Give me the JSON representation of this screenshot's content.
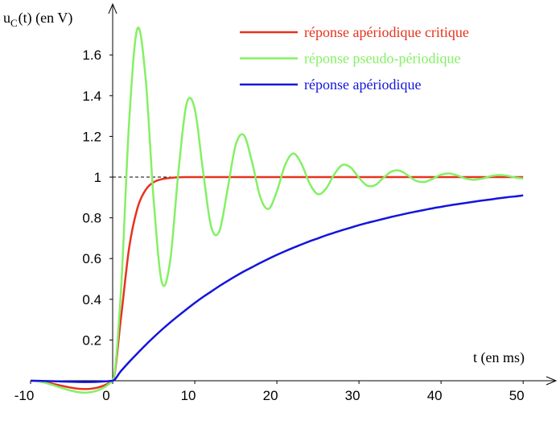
{
  "chart_data": {
    "type": "line",
    "y_label": [
      "u",
      "C",
      "(t) (en V)"
    ],
    "x_label": "t (en ms)",
    "xlim": [
      -10,
      54
    ],
    "ylim": [
      0,
      1.85
    ],
    "xticks": [
      -10,
      0,
      10,
      20,
      30,
      40,
      50
    ],
    "yticks": [
      0.2,
      0.4,
      0.6,
      0.8,
      1,
      1.2,
      1.4,
      1.6
    ],
    "dashed_line": {
      "y": 1,
      "x_end": 8
    },
    "x": [
      -10,
      0,
      1,
      2,
      3,
      4,
      5,
      6,
      7,
      8,
      9,
      10,
      11,
      12,
      13,
      14,
      15,
      16,
      17,
      18,
      19,
      20,
      21,
      22,
      23,
      24,
      25,
      26,
      27,
      28,
      29,
      30,
      31,
      32,
      33,
      34,
      35,
      36,
      37,
      38,
      39,
      40,
      41,
      42,
      43,
      44,
      45,
      46,
      47,
      48,
      49,
      50
    ],
    "series": [
      {
        "name": "réponse apériodique critique",
        "color": "#e8321e",
        "values": [
          0,
          0,
          0.305,
          0.651,
          0.845,
          0.936,
          0.975,
          0.99,
          0.996,
          0.999,
          1,
          1,
          1,
          1,
          1,
          1,
          1,
          1,
          1,
          1,
          1,
          1,
          1,
          1,
          1,
          1,
          1,
          1,
          1,
          1,
          1,
          1,
          1,
          1,
          1,
          1,
          1,
          1,
          1,
          1,
          1,
          1,
          1,
          1,
          1,
          1,
          1,
          1,
          1,
          1,
          1,
          1
        ]
      },
      {
        "name": "réponse pseudo-périodique",
        "color": "#84f064",
        "values": [
          0,
          0,
          0.435,
          1.269,
          1.728,
          1.492,
          0.884,
          0.482,
          0.588,
          1.022,
          1.36,
          1.335,
          1.032,
          0.756,
          0.735,
          0.941,
          1.16,
          1.205,
          1.07,
          0.899,
          0.844,
          0.93,
          1.059,
          1.116,
          1.065,
          0.968,
          0.916,
          0.944,
          1.014,
          1.06,
          1.047,
          0.997,
          0.958,
          0.961,
          0.997,
          1.028,
          1.031,
          1.007,
          0.981,
          0.976,
          0.992,
          1.012,
          1.018,
          1.008,
          0.993,
          0.987,
          0.993,
          1.004,
          1.01,
          1.007,
          0.998,
          0.993
        ]
      },
      {
        "name": "réponse apériodique",
        "color": "#1414dc",
        "values": [
          0,
          0,
          0.047,
          0.092,
          0.134,
          0.175,
          0.214,
          0.251,
          0.286,
          0.319,
          0.351,
          0.382,
          0.411,
          0.438,
          0.465,
          0.49,
          0.514,
          0.537,
          0.558,
          0.579,
          0.599,
          0.618,
          0.636,
          0.653,
          0.669,
          0.685,
          0.699,
          0.714,
          0.727,
          0.74,
          0.752,
          0.764,
          0.775,
          0.785,
          0.795,
          0.805,
          0.814,
          0.823,
          0.831,
          0.839,
          0.847,
          0.854,
          0.861,
          0.867,
          0.873,
          0.879,
          0.885,
          0.89,
          0.896,
          0.901,
          0.905,
          0.91
        ]
      }
    ]
  }
}
